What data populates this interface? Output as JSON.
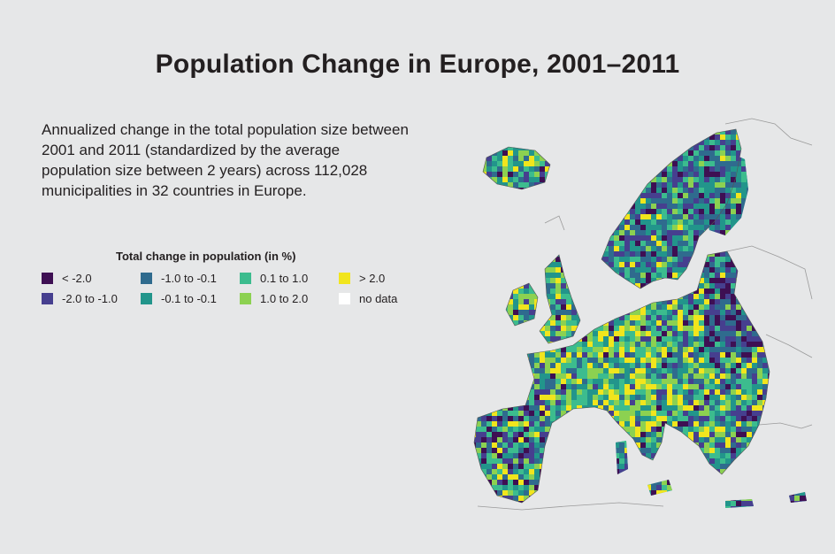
{
  "header": {
    "title": "Population Change in Europe, 2001–2011"
  },
  "description": "Annualized change in the total population size between 2001 and 2011 (standardized by the average population size between 2 years) across 112,028 municipalities in 32 countries in Europe.",
  "legend": {
    "title": "Total change in population (in %)",
    "items": [
      {
        "label": "< -2.0",
        "color": "#3e0f53"
      },
      {
        "label": "-1.0 to -0.1",
        "color": "#2f6b8e"
      },
      {
        "label": "0.1 to 1.0",
        "color": "#3cbc8e"
      },
      {
        "label": "> 2.0",
        "color": "#f1e51d"
      },
      {
        "label": "-2.0 to -1.0",
        "color": "#463f8f"
      },
      {
        "label": "-0.1 to -0.1",
        "color": "#22958b"
      },
      {
        "label": "1.0 to 2.0",
        "color": "#8cd151"
      },
      {
        "label": "no data",
        "color": "#ffffff"
      }
    ]
  },
  "map": {
    "region": "Europe",
    "palette": [
      "#3e0f53",
      "#463f8f",
      "#2f6b8e",
      "#22958b",
      "#3cbc8e",
      "#8cd151",
      "#f1e51d"
    ]
  }
}
